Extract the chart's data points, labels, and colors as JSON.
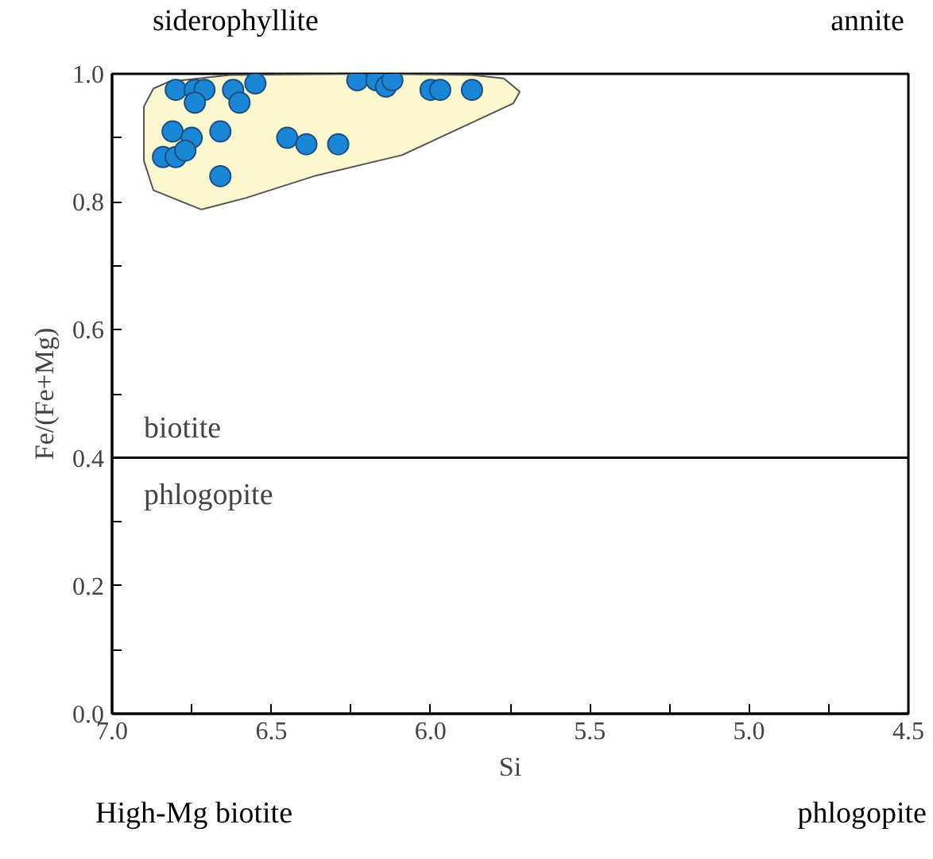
{
  "chart_data": {
    "type": "scatter",
    "xlabel": "Si",
    "ylabel": "Fe/(Fe+Mg)",
    "xlim": [
      7.0,
      4.5
    ],
    "xticks": [
      {
        "value": 7.0,
        "label": "7.0"
      },
      {
        "value": 6.75,
        "label": null
      },
      {
        "value": 6.5,
        "label": "6.5"
      },
      {
        "value": 6.25,
        "label": null
      },
      {
        "value": 6.0,
        "label": "6.0"
      },
      {
        "value": 5.75,
        "label": null
      },
      {
        "value": 5.5,
        "label": "5.5"
      },
      {
        "value": 5.25,
        "label": null
      },
      {
        "value": 5.0,
        "label": "5.0"
      },
      {
        "value": 4.75,
        "label": null
      },
      {
        "value": 4.5,
        "label": "4.5"
      }
    ],
    "ylim": [
      0,
      1.0
    ],
    "yticks": [
      {
        "value": 0,
        "label": "0.0"
      },
      {
        "value": 0.1,
        "label": null
      },
      {
        "value": 0.2,
        "label": "0.2"
      },
      {
        "value": 0.3,
        "label": null
      },
      {
        "value": 0.4,
        "label": "0.4"
      },
      {
        "value": 0.5,
        "label": null
      },
      {
        "value": 0.6,
        "label": "0.6"
      },
      {
        "value": 0.7,
        "label": null
      },
      {
        "value": 0.8,
        "label": "0.8"
      },
      {
        "value": 0.9,
        "label": null
      },
      {
        "value": 1.0,
        "label": "1.0"
      }
    ],
    "grid": false,
    "series": [
      {
        "type": "area",
        "color": "#fbf7cf",
        "x": [
          6.82,
          6.63,
          6.18,
          5.87,
          5.77,
          5.72,
          5.74,
          6.09,
          6.36,
          6.58,
          6.72,
          6.87,
          6.9,
          6.9,
          6.87
        ],
        "values": [
          0.988,
          0.998,
          1.0,
          0.998,
          0.993,
          0.972,
          0.954,
          0.873,
          0.841,
          0.806,
          0.788,
          0.818,
          0.864,
          0.949,
          0.977
        ]
      },
      {
        "color": "#1a86d6",
        "marker": "circle",
        "x": [
          6.8,
          6.74,
          6.71,
          6.74,
          6.62,
          6.6,
          6.55,
          6.81,
          6.75,
          6.84,
          6.8,
          6.77,
          6.66,
          6.66,
          6.45,
          6.39,
          6.29,
          6.23,
          6.17,
          6.14,
          6.12,
          6.0,
          5.97,
          5.87
        ],
        "values": [
          0.975,
          0.975,
          0.975,
          0.955,
          0.975,
          0.955,
          0.985,
          0.91,
          0.9,
          0.87,
          0.87,
          0.88,
          0.91,
          0.84,
          0.9,
          0.89,
          0.89,
          0.99,
          0.99,
          0.98,
          0.99,
          0.975,
          0.975,
          0.975
        ]
      }
    ],
    "ref_lines": [
      {
        "axis": "y",
        "value": 0.4,
        "label": null,
        "color": "#000000"
      }
    ],
    "annotations": [
      "siderophyllite",
      "annite",
      "biotite",
      "phlogopite",
      "High-Mg biotite",
      "phlogopite"
    ]
  }
}
